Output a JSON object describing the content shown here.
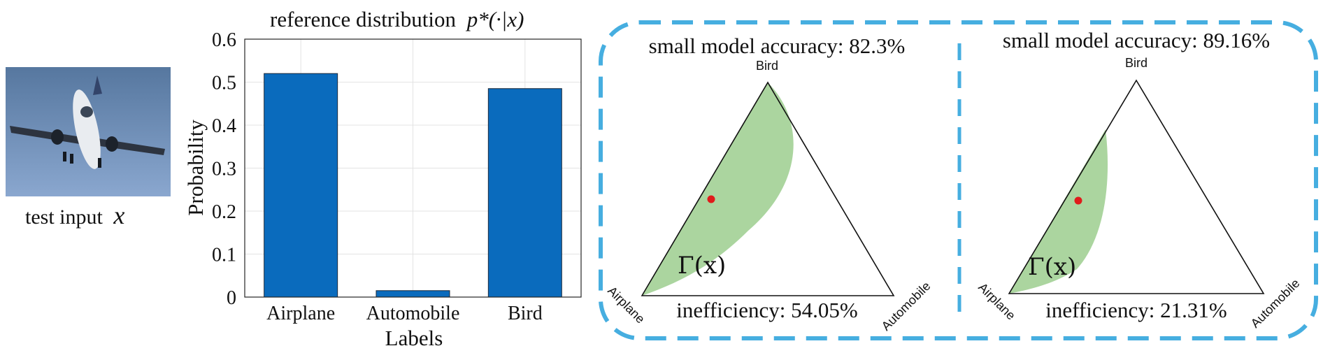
{
  "input": {
    "caption_prefix": "test input",
    "caption_var": "x",
    "image_subject": "airplane-photo",
    "sky_color": "#6e8fbf"
  },
  "chart_data": {
    "type": "bar",
    "title": "reference distribution p*(·|x)",
    "title_prefix": "reference distribution",
    "title_math": "p*(·|x)",
    "categories": [
      "Airplane",
      "Automobile",
      "Bird"
    ],
    "values": [
      0.52,
      0.015,
      0.485
    ],
    "xlabel": "Labels",
    "ylabel": "Probability",
    "ylim": [
      0,
      0.6
    ],
    "yticks": [
      "0",
      "0.1",
      "0.2",
      "0.3",
      "0.4",
      "0.5",
      "0.6"
    ],
    "grid": true,
    "bar_color": "#0a6bbd"
  },
  "panels": [
    {
      "accuracy_text": "small model accuracy: 82.3%",
      "inefficiency_text": "inefficiency: 54.05%",
      "set_label": "Γ(x)",
      "vertex_top": "Bird",
      "vertex_left": "Airplane",
      "vertex_right": "Automobile",
      "reference_point": [
        0.52,
        0.015,
        0.485
      ]
    },
    {
      "accuracy_text": "small model accuracy: 89.16%",
      "inefficiency_text": "inefficiency: 21.31%",
      "set_label": "Γ(x)",
      "vertex_top": "Bird",
      "vertex_left": "Airplane",
      "vertex_right": "Automobile",
      "reference_point": [
        0.52,
        0.015,
        0.485
      ]
    }
  ],
  "colors": {
    "dashed_border": "#46aee0",
    "region_fill": "#9fcf92",
    "point": "#e01b1b"
  }
}
